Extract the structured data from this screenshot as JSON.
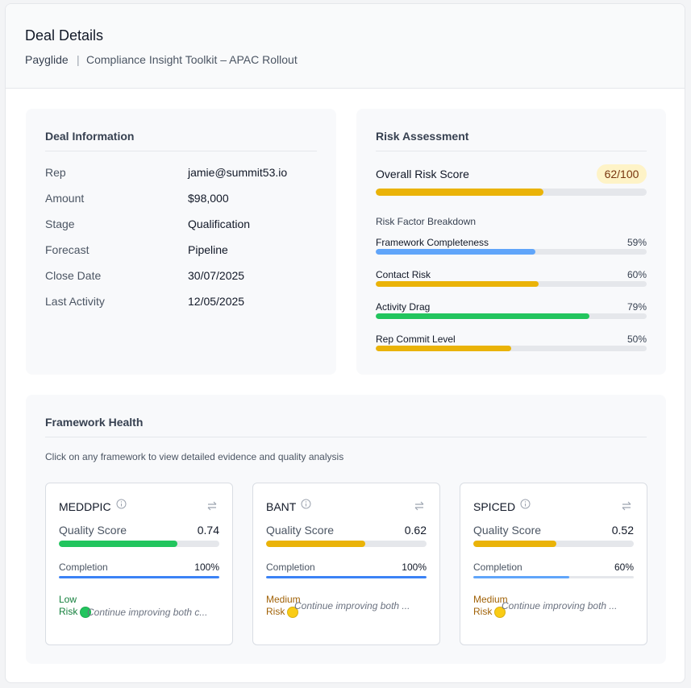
{
  "header": {
    "title": "Deal Details",
    "company": "Payglide",
    "separator": "|",
    "deal_name": "Compliance Insight Toolkit – APAC Rollout"
  },
  "deal_information": {
    "title": "Deal Information",
    "fields": [
      {
        "label": "Rep",
        "value": "jamie@summit53.io"
      },
      {
        "label": "Amount",
        "value": "$98,000"
      },
      {
        "label": "Stage",
        "value": "Qualification"
      },
      {
        "label": "Forecast",
        "value": "Pipeline"
      },
      {
        "label": "Close Date",
        "value": "30/07/2025"
      },
      {
        "label": "Last Activity",
        "value": "12/05/2025"
      }
    ]
  },
  "risk_assessment": {
    "title": "Risk Assessment",
    "overall_label": "Overall Risk Score",
    "overall_score": 62,
    "overall_max": 100,
    "overall_score_label": "62/100",
    "breakdown_title": "Risk Factor Breakdown",
    "factors": [
      {
        "name": "Framework Completeness",
        "value": 59,
        "value_label": "59%",
        "color": "#60a5fa"
      },
      {
        "name": "Contact Risk",
        "value": 60,
        "value_label": "60%",
        "color": "#eab308"
      },
      {
        "name": "Activity Drag",
        "value": 79,
        "value_label": "79%",
        "color": "#22c55e"
      },
      {
        "name": "Rep Commit Level",
        "value": 50,
        "value_label": "50%",
        "color": "#eab308"
      }
    ]
  },
  "framework_health": {
    "title": "Framework Health",
    "instruction": "Click on any framework to view detailed evidence and quality analysis",
    "frameworks": [
      {
        "name": "MEDDPIC",
        "quality_label": "Quality Score",
        "quality_score": 0.74,
        "quality_color": "#22c55e",
        "completion_label": "Completion",
        "completion": 100,
        "completion_text": "100%",
        "completion_color": "#3b82f6",
        "risk": "Low Risk",
        "risk_color": "#15803d",
        "risk_dot": "#22c55e",
        "note": "Continue improving both c..."
      },
      {
        "name": "BANT",
        "quality_label": "Quality Score",
        "quality_score": 0.62,
        "quality_color": "#eab308",
        "completion_label": "Completion",
        "completion": 100,
        "completion_text": "100%",
        "completion_color": "#3b82f6",
        "risk": "Medium Risk",
        "risk_color": "#a16207",
        "risk_dot": "#facc15",
        "note": "Continue improving both ..."
      },
      {
        "name": "SPICED",
        "quality_label": "Quality Score",
        "quality_score": 0.52,
        "quality_color": "#eab308",
        "completion_label": "Completion",
        "completion": 60,
        "completion_text": "60%",
        "completion_color": "#60a5fa",
        "risk": "Medium Risk",
        "risk_color": "#a16207",
        "risk_dot": "#facc15",
        "note": "Continue improving both ..."
      }
    ]
  }
}
